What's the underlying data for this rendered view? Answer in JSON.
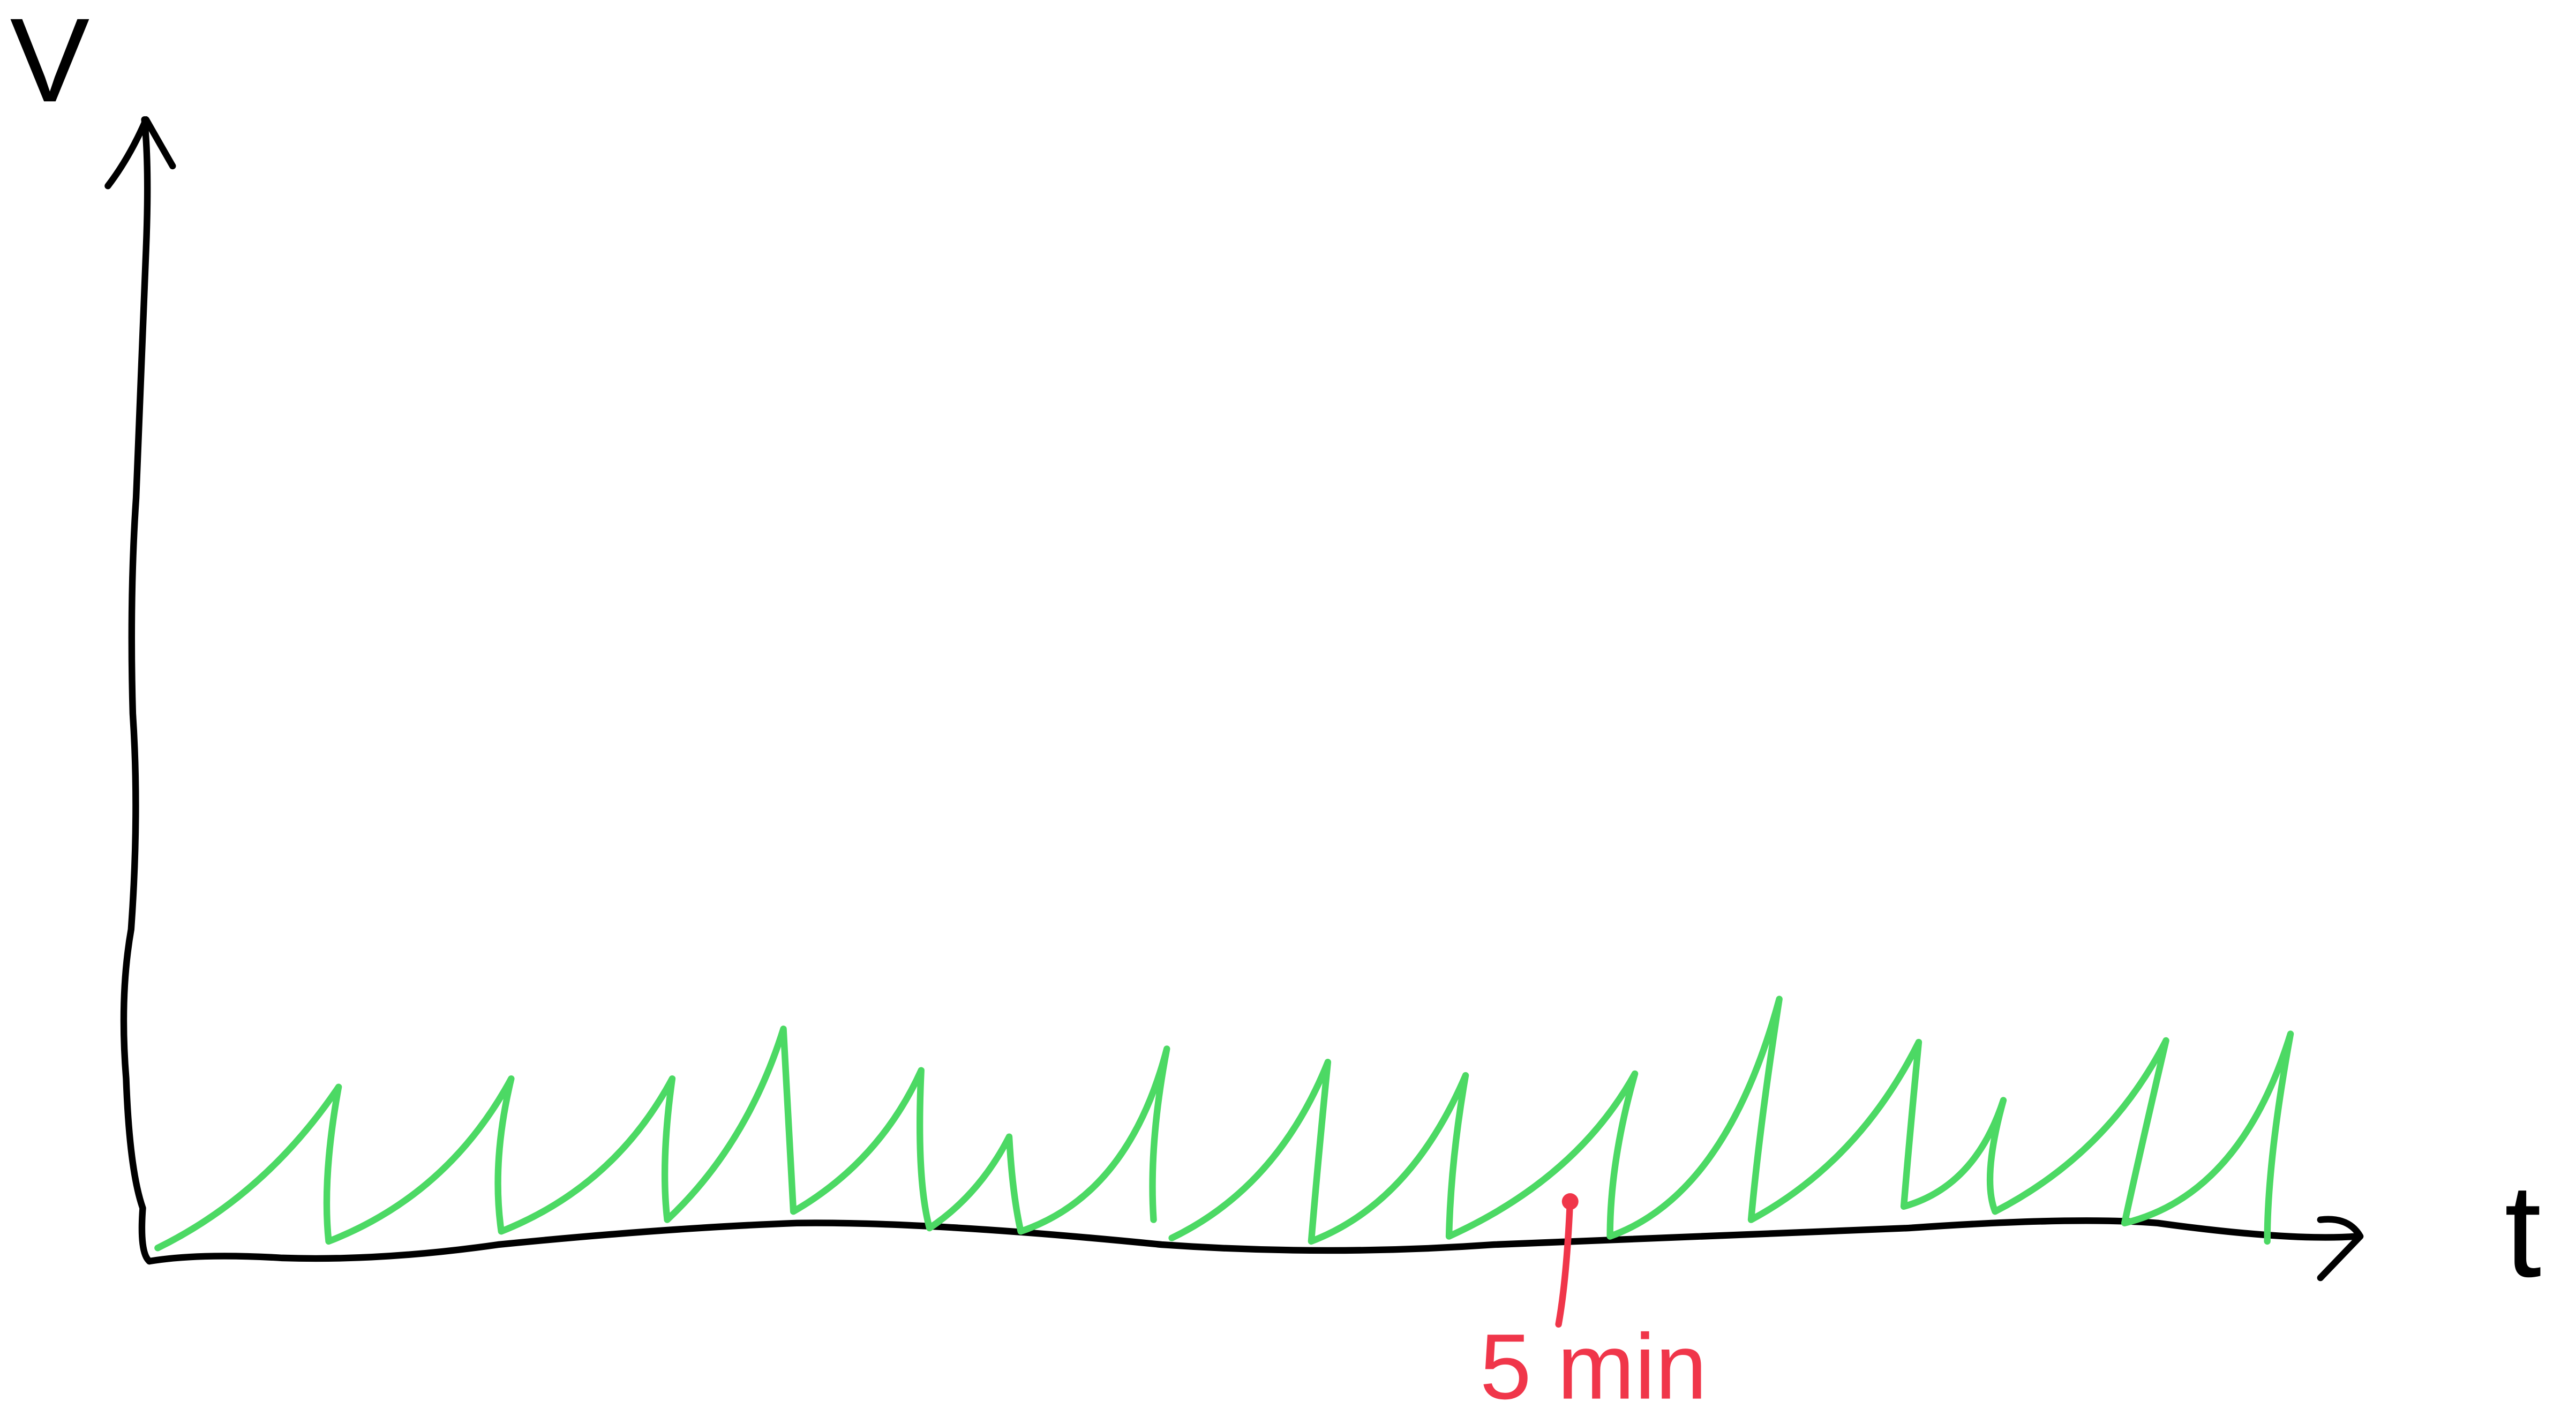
{
  "axis_labels": {
    "y": "V",
    "x": "t"
  },
  "annotation": "5 min"
}
